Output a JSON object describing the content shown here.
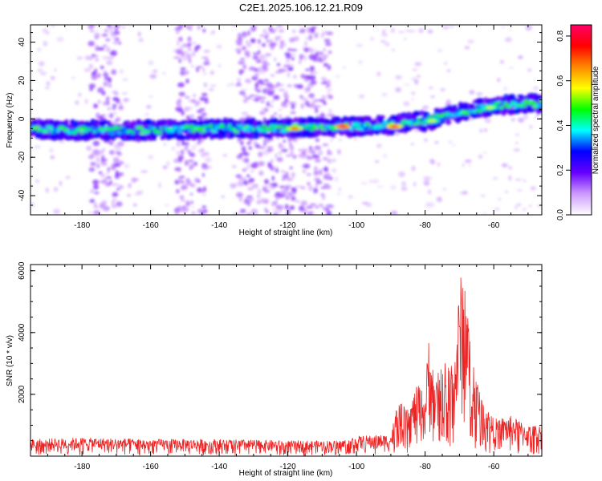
{
  "figure": {
    "title": "C2E1.2025.106.12.21.R09"
  },
  "chart_data": [
    {
      "type": "heatmap",
      "name": "spectrogram",
      "xlabel": "Height of straight line (km)",
      "ylabel": "Frequency (Hz)",
      "xlim": [
        -195,
        -46
      ],
      "ylim": [
        -50,
        49
      ],
      "x_ticks": [
        -180,
        -160,
        -140,
        -120,
        -100,
        -80,
        -60
      ],
      "y_ticks": [
        -40,
        -20,
        0,
        20,
        40
      ],
      "grid": false,
      "ridge": {
        "description_points_x": [
          -195,
          -180,
          -160,
          -140,
          -120,
          -105,
          -100,
          -90,
          -80,
          -70,
          -60,
          -50
        ],
        "frequency_hz": [
          -5,
          -6,
          -6,
          -5,
          -5,
          -4,
          -4,
          -3,
          -1,
          3,
          7,
          8
        ]
      },
      "hot_spots": [
        {
          "x": -104,
          "y": -4,
          "value": 0.8
        },
        {
          "x": -89,
          "y": -4,
          "value": 0.75
        },
        {
          "x": -118,
          "y": -5,
          "value": 0.7
        },
        {
          "x": -78,
          "y": -1,
          "value": 0.55
        },
        {
          "x": -61,
          "y": 6,
          "value": 0.55
        }
      ],
      "noise_columns_x": [
        -173,
        -148,
        -130,
        -122,
        -112
      ],
      "colorbar": {
        "label": "Normalized spectral amplitude",
        "range": [
          0.0,
          0.85
        ],
        "ticks": [
          "0.0",
          "0.2",
          "0.4",
          "0.6",
          "0.8"
        ],
        "colormap": [
          "#ffffff",
          "#cc99ff",
          "#6600ff",
          "#0000ff",
          "#00ffff",
          "#00ff00",
          "#ffff00",
          "#ff8800",
          "#ff0000",
          "#ff0066"
        ]
      }
    },
    {
      "type": "line",
      "name": "snr",
      "xlabel": "Height of straight line (km)",
      "ylabel": "SNR (10 * v/v)",
      "xlim": [
        -195,
        -46
      ],
      "ylim": [
        0,
        6200
      ],
      "x_ticks": [
        -180,
        -160,
        -140,
        -120,
        -100,
        -80,
        -60
      ],
      "y_ticks": [
        2000,
        4000,
        6000
      ],
      "grid": false,
      "color": "#ee2222",
      "envelope": {
        "x": [
          -195,
          -180,
          -160,
          -140,
          -120,
          -105,
          -100,
          -90,
          -88,
          -85,
          -82,
          -80,
          -79,
          -77,
          -75,
          -73,
          -71,
          -70,
          -69,
          -68,
          -67,
          -66,
          -64,
          -62,
          -60,
          -55,
          -50,
          -46
        ],
        "y": [
          550,
          600,
          550,
          550,
          500,
          500,
          650,
          700,
          1800,
          1500,
          2400,
          1900,
          4000,
          2300,
          3300,
          3000,
          3600,
          5700,
          6050,
          5900,
          3800,
          3200,
          2100,
          1600,
          1200,
          1300,
          1000,
          1000
        ]
      }
    }
  ]
}
